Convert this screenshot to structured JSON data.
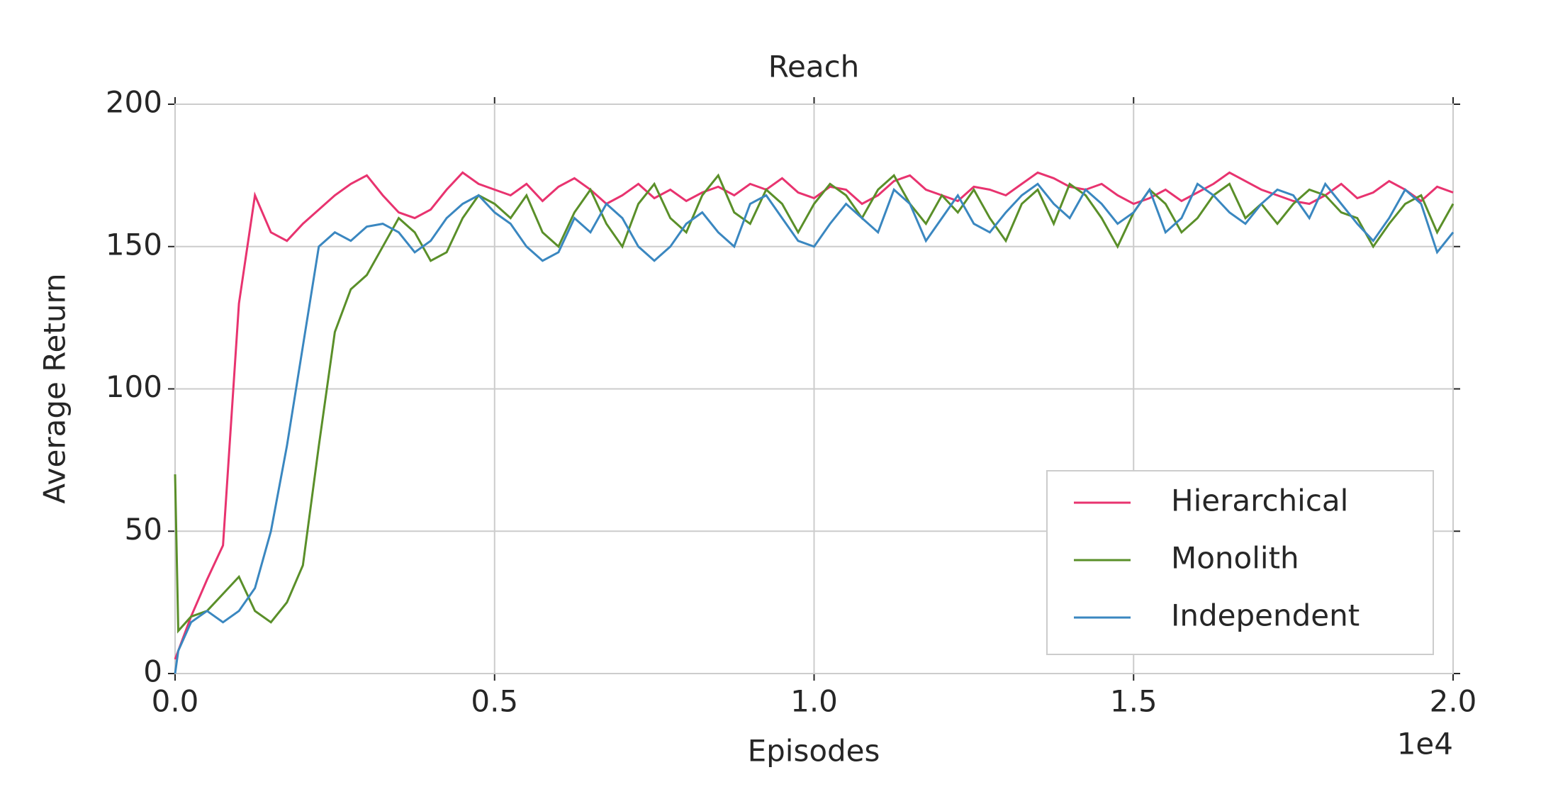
{
  "chart_data": {
    "type": "line",
    "title": "Reach",
    "xlabel": "Episodes",
    "ylabel": "Average Return",
    "x_offset_label": "1e4",
    "x": [
      0,
      50,
      250,
      500,
      750,
      1000,
      1250,
      1500,
      1750,
      2000,
      2250,
      2500,
      2750,
      3000,
      3250,
      3500,
      3750,
      4000,
      4250,
      4500,
      4750,
      5000,
      5250,
      5500,
      5750,
      6000,
      6250,
      6500,
      6750,
      7000,
      7250,
      7500,
      7750,
      8000,
      8250,
      8500,
      8750,
      9000,
      9250,
      9500,
      9750,
      10000,
      10250,
      10500,
      10750,
      11000,
      11250,
      11500,
      11750,
      12000,
      12250,
      12500,
      12750,
      13000,
      13250,
      13500,
      13750,
      14000,
      14250,
      14500,
      14750,
      15000,
      15250,
      15500,
      15750,
      16000,
      16250,
      16500,
      16750,
      17000,
      17250,
      17500,
      17750,
      18000,
      18250,
      18500,
      18750,
      19000,
      19250,
      19500,
      19750,
      20000
    ],
    "series": [
      {
        "name": "Hierarchical",
        "color": "#e8336f",
        "values": [
          5,
          8,
          20,
          33,
          45,
          130,
          168,
          155,
          152,
          158,
          163,
          168,
          172,
          175,
          168,
          162,
          160,
          163,
          170,
          176,
          172,
          170,
          168,
          172,
          166,
          171,
          174,
          170,
          165,
          168,
          172,
          167,
          170,
          166,
          169,
          171,
          168,
          172,
          170,
          174,
          169,
          167,
          171,
          170,
          165,
          168,
          173,
          175,
          170,
          168,
          166,
          171,
          170,
          168,
          172,
          176,
          174,
          171,
          170,
          172,
          168,
          165,
          167,
          170,
          166,
          169,
          172,
          176,
          173,
          170,
          168,
          166,
          165,
          168,
          172,
          167,
          169,
          173,
          170,
          166,
          171,
          169
        ]
      },
      {
        "name": "Monolith",
        "color": "#5a8f29",
        "values": [
          70,
          15,
          20,
          22,
          28,
          34,
          22,
          18,
          25,
          38,
          80,
          120,
          135,
          140,
          150,
          160,
          155,
          145,
          148,
          160,
          168,
          165,
          160,
          168,
          155,
          150,
          162,
          170,
          158,
          150,
          165,
          172,
          160,
          155,
          168,
          175,
          162,
          158,
          170,
          165,
          155,
          165,
          172,
          168,
          160,
          170,
          175,
          165,
          158,
          168,
          162,
          170,
          160,
          152,
          165,
          170,
          158,
          172,
          168,
          160,
          150,
          162,
          170,
          165,
          155,
          160,
          168,
          172,
          160,
          165,
          158,
          165,
          170,
          168,
          162,
          160,
          150,
          158,
          165,
          168,
          155,
          165
        ]
      },
      {
        "name": "Independent",
        "color": "#3a87c0",
        "values": [
          0,
          8,
          18,
          22,
          18,
          22,
          30,
          50,
          80,
          115,
          150,
          155,
          152,
          157,
          158,
          155,
          148,
          152,
          160,
          165,
          168,
          162,
          158,
          150,
          145,
          148,
          160,
          155,
          165,
          160,
          150,
          145,
          150,
          158,
          162,
          155,
          150,
          165,
          168,
          160,
          152,
          150,
          158,
          165,
          160,
          155,
          170,
          165,
          152,
          160,
          168,
          158,
          155,
          162,
          168,
          172,
          165,
          160,
          170,
          165,
          158,
          162,
          170,
          155,
          160,
          172,
          168,
          162,
          158,
          165,
          170,
          168,
          160,
          172,
          165,
          158,
          152,
          160,
          170,
          165,
          148,
          155
        ]
      }
    ],
    "xlim": [
      0,
      20000
    ],
    "ylim": [
      0,
      200
    ],
    "xticks": [
      {
        "value": 0,
        "label": "0.0"
      },
      {
        "value": 5000,
        "label": "0.5"
      },
      {
        "value": 10000,
        "label": "1.0"
      },
      {
        "value": 15000,
        "label": "1.5"
      },
      {
        "value": 20000,
        "label": "2.0"
      }
    ],
    "yticks": [
      0,
      50,
      100,
      150,
      200
    ],
    "grid": true,
    "legend": "lower right"
  }
}
